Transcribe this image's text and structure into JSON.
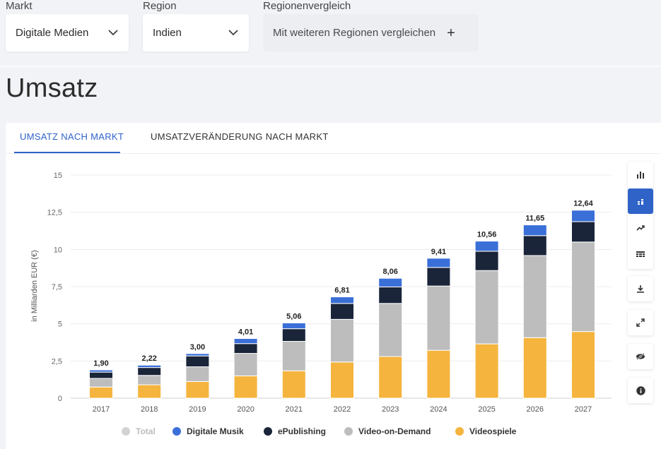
{
  "filters": {
    "market": {
      "label": "Markt",
      "value": "Digitale Medien"
    },
    "region": {
      "label": "Region",
      "value": "Indien"
    },
    "compare": {
      "label": "Regionenvergleich",
      "placeholder": "Mit weiteren Regionen vergleichen"
    }
  },
  "page_title": "Umsatz",
  "tabs": [
    {
      "label": "UMSATZ NACH MARKT",
      "active": true
    },
    {
      "label": "UMSATZVERÄNDERUNG NACH MARKT",
      "active": false
    }
  ],
  "toolbar": {
    "icons": [
      "bar-chart-icon",
      "stacked-bar-icon",
      "trend-line-icon",
      "table-grid-icon",
      "download-icon",
      "expand-icon",
      "hide-icon",
      "info-icon"
    ]
  },
  "colors": {
    "accent": "#2f63c8",
    "Digitale Musik": "#3a6fd8",
    "ePublishing": "#1b2539",
    "Video-on-Demand": "#bdbdbd",
    "Videospiele": "#f4b43d",
    "Total": "#d3d3d3"
  },
  "chart_data": {
    "type": "bar",
    "stacked": true,
    "ylabel": "in Milliarden EUR (€)",
    "ylim": [
      0,
      15
    ],
    "yticks": [
      "0",
      "2,5",
      "5",
      "7,5",
      "10",
      "12,5",
      "15"
    ],
    "ytick_values": [
      0,
      2.5,
      5,
      7.5,
      10,
      12.5,
      15
    ],
    "categories": [
      "2017",
      "2018",
      "2019",
      "2020",
      "2021",
      "2022",
      "2023",
      "2024",
      "2025",
      "2026",
      "2027"
    ],
    "totals": [
      1.9,
      2.22,
      3.0,
      4.01,
      5.06,
      6.81,
      8.06,
      9.41,
      10.56,
      11.65,
      12.64
    ],
    "total_labels": [
      "1,90",
      "2,22",
      "3,00",
      "4,01",
      "5,06",
      "6,81",
      "8,06",
      "9,41",
      "10,56",
      "11,65",
      "12,64"
    ],
    "series": [
      {
        "name": "Videospiele",
        "values": [
          0.75,
          0.9,
          1.12,
          1.5,
          1.84,
          2.43,
          2.8,
          3.22,
          3.65,
          4.07,
          4.48
        ]
      },
      {
        "name": "Video-on-Demand",
        "values": [
          0.58,
          0.63,
          0.99,
          1.51,
          1.98,
          2.87,
          3.57,
          4.32,
          4.93,
          5.52,
          6.02
        ]
      },
      {
        "name": "ePublishing",
        "values": [
          0.42,
          0.53,
          0.73,
          0.66,
          0.85,
          1.07,
          1.11,
          1.25,
          1.3,
          1.34,
          1.37
        ]
      },
      {
        "name": "Digitale Musik",
        "values": [
          0.15,
          0.16,
          0.16,
          0.34,
          0.39,
          0.44,
          0.58,
          0.62,
          0.68,
          0.72,
          0.77
        ]
      }
    ],
    "legend": [
      {
        "name": "Total",
        "visible": false
      },
      {
        "name": "Digitale Musik",
        "visible": true
      },
      {
        "name": "ePublishing",
        "visible": true
      },
      {
        "name": "Video-on-Demand",
        "visible": true
      },
      {
        "name": "Videospiele",
        "visible": true
      }
    ],
    "legend_position": "bottom",
    "grid": true
  }
}
